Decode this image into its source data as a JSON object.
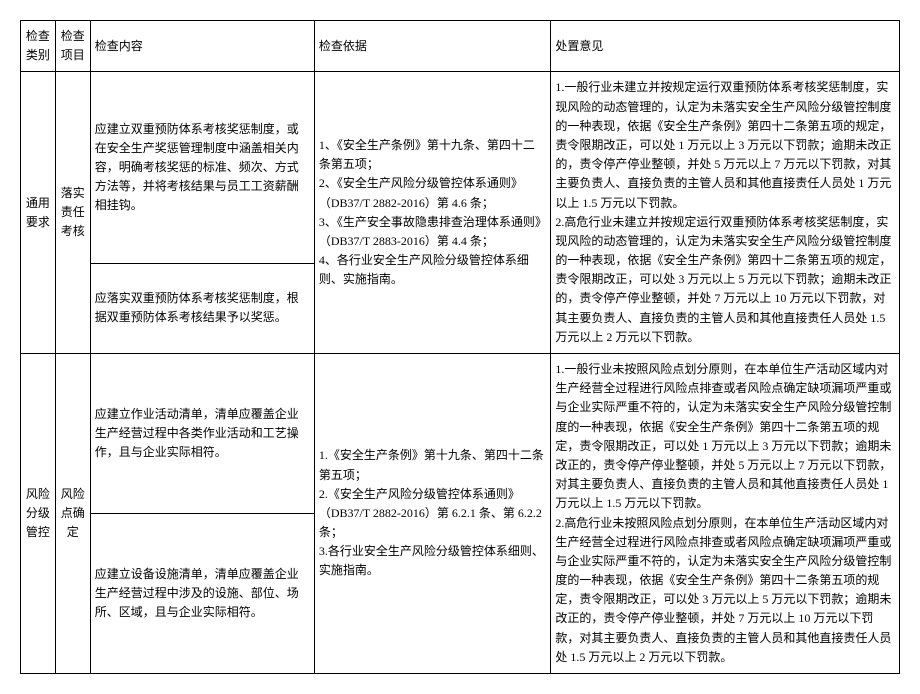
{
  "headers": {
    "category": "检查类别",
    "item": "检查项目",
    "content": "检查内容",
    "basis": "检查依据",
    "opinion": "处置意见"
  },
  "rows": [
    {
      "category": "通用要求",
      "item": "落实责任考核",
      "contents": [
        "应建立双重预防体系考核奖惩制度，或在安全生产奖惩管理制度中涵盖相关内容，明确考核奖惩的标准、频次、方式方法等，并将考核结果与员工工资薪酬相挂钩。",
        "应落实双重预防体系考核奖惩制度，根据双重预防体系考核结果予以奖惩。"
      ],
      "basis": "1、《安全生产条例》第十九条、第四十二条第五项；\n2、《安全生产风险分级管控体系通则》（DB37/T 2882-2016）第 4.6 条；\n3、《生产安全事故隐患排查治理体系通则》（DB37/T 2883-2016）第 4.4 条；\n4、各行业安全生产风险分级管控体系细则、实施指南。",
      "opinion": "1.一般行业未建立并按规定运行双重预防体系考核奖惩制度，实现风险的动态管理的，认定为未落实安全生产风险分级管控制度的一种表现，依据《安全生产条例》第四十二条第五项的规定，责令限期改正，可以处 1 万元以上 3 万元以下罚款；逾期未改正的，责令停产停业整顿，并处 5 万元以上 7 万元以下罚款，对其主要负责人、直接负责的主管人员和其他直接责任人员处 1 万元以上 1.5 万元以下罚款。\n2.高危行业未建立并按规定运行双重预防体系考核奖惩制度，实现风险的动态管理的，认定为未落实安全生产风险分级管控制度的一种表现，依据《安全生产条例》第四十二条第五项的规定，责令限期改正，可以处 3 万元以上 5 万元以下罚款；逾期未改正的，责令停产停业整顿，并处 7 万元以上 10 万元以下罚款，对其主要负责人、直接负责的主管人员和其他直接责任人员处 1.5 万元以上 2 万元以下罚款。"
    },
    {
      "category": "风险分级管控",
      "item": "风险点确定",
      "contents": [
        "应建立作业活动清单，清单应覆盖企业生产经营过程中各类作业活动和工艺操作，且与企业实际相符。",
        "应建立设备设施清单，清单应覆盖企业生产经营过程中涉及的设施、部位、场所、区域，且与企业实际相符。"
      ],
      "basis": "1.《安全生产条例》第十九条、第四十二条第五项；\n2.《安全生产风险分级管控体系通则》（DB37/T 2882-2016）第 6.2.1 条、第 6.2.2 条；\n3.各行业安全生产风险分级管控体系细则、实施指南。",
      "opinion": "1.一般行业未按照风险点划分原则，在本单位生产活动区域内对生产经营全过程进行风险点排查或者风险点确定缺项漏项严重或与企业实际严重不符的，认定为未落实安全生产风险分级管控制度的一种表现，依据《安全生产条例》第四十二条第五项的规定，责令限期改正，可以处 1 万元以上 3 万元以下罚款；逾期未改正的，责令停产停业整顿，并处 5 万元以上 7 万元以下罚款，对其主要负责人、直接负责的主管人员和其他直接责任人员处 1 万元以上 1.5 万元以下罚款。\n2.高危行业未按照风险点划分原则，在本单位生产活动区域内对生产经营全过程进行风险点排查或者风险点确定缺项漏项严重或与企业实际严重不符的，认定为未落实安全生产风险分级管控制度的一种表现，依据《安全生产条例》第四十二条第五项的规定，责令限期改正，可以处 3 万元以上 5 万元以下罚款；逾期未改正的，责令停产停业整顿，并处 7 万元以上 10 万元以下罚款，对其主要负责人、直接负责的主管人员和其他直接责任人员处 1.5 万元以上 2 万元以下罚款。"
    }
  ]
}
